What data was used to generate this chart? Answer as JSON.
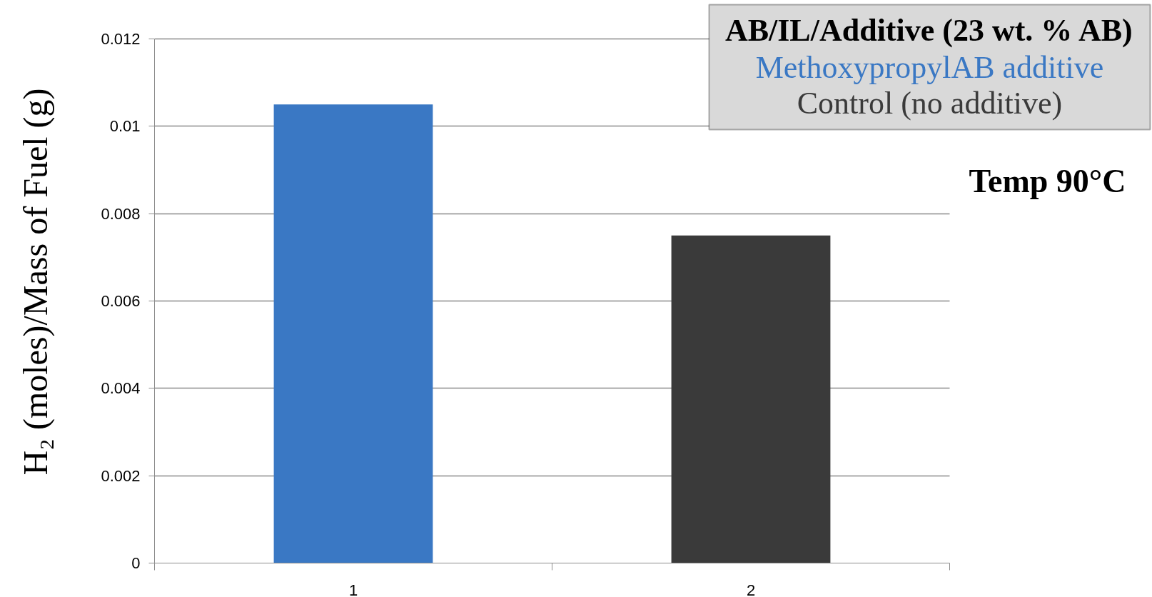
{
  "chart_data": {
    "type": "bar",
    "categories": [
      "1",
      "2"
    ],
    "series": [
      {
        "name": "MethoxypropylAB additive",
        "color": "#3a78c4",
        "values": [
          0.0105,
          null
        ]
      },
      {
        "name": "Control (no additive)",
        "color": "#3a3a3a",
        "values": [
          null,
          0.0075
        ]
      }
    ],
    "ylabel": "H₂ (moles)/Mass of Fuel (g)",
    "legend_title": "AB/IL/Additive (23 wt. % AB)",
    "legend": "top right",
    "annotations": [
      "Temp 90°C"
    ],
    "ylim": [
      0,
      0.012
    ],
    "yticks": [
      0,
      0.002,
      0.004,
      0.006,
      0.008,
      0.01,
      0.012
    ],
    "grid": "y"
  }
}
